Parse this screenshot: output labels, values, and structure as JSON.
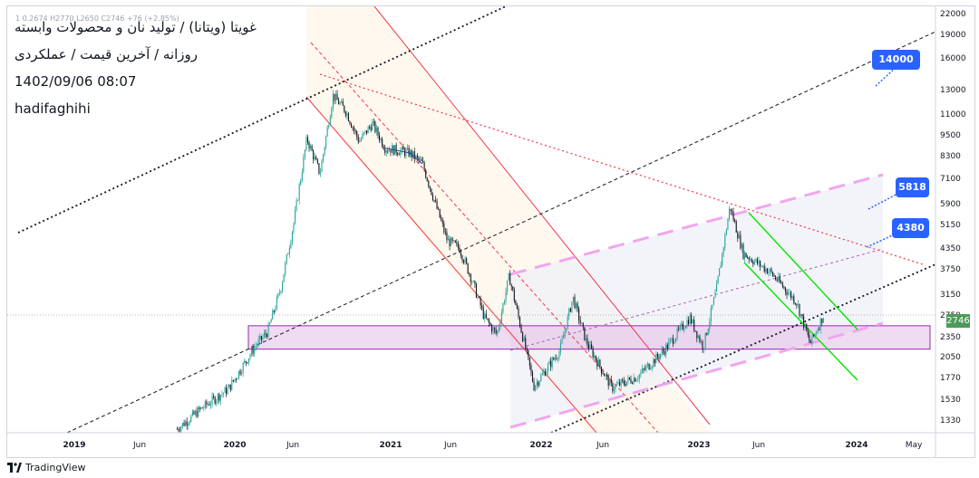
{
  "header": {
    "ohlc": "1 0.2674 H2770 L2650 C2746 +76 (+2.85%)",
    "line1": "غویتا (ویتانا) / تولید نان و محصولات وابسته",
    "line2": "روزانه / آخرین قیمت / عملکردی",
    "line3": "1402/09/06 08:07",
    "line4": "hadifaghihi"
  },
  "callouts": [
    "14000",
    "5818",
    "4380"
  ],
  "last_price": "2746",
  "brand": "TradingView",
  "colors": {
    "up": "#26a69a",
    "line": "#2a3f9e",
    "pink_dashed": "#f0a6ee",
    "red": "#f23645",
    "green": "#00e600",
    "zone": "#e1bee7",
    "callout": "#2962ff",
    "price_tag": "#4c9a59"
  },
  "chart_data": {
    "type": "candlestick",
    "y_scale": "log",
    "ylim": [
      1200,
      22000
    ],
    "y_ticks": [
      "22000",
      "19000",
      "16000",
      "13000",
      "11000",
      "9500",
      "8300",
      "7100",
      "5900",
      "5150",
      "4350",
      "3750",
      "3150",
      "2750",
      "2350",
      "2050",
      "1770",
      "1530",
      "1330"
    ],
    "x_ticks": [
      "2019",
      "Jun",
      "2020",
      "Jun",
      "2021",
      "Jun",
      "2022",
      "Jun",
      "2023",
      "Jun",
      "2024",
      "May"
    ],
    "series": [
      {
        "price_path": [
          [
            "2019-09",
            1250
          ],
          [
            "2019-11",
            1450
          ],
          [
            "2020-01",
            1650
          ],
          [
            "2020-03",
            2200
          ],
          [
            "2020-04",
            2450
          ],
          [
            "2020-05",
            3300
          ],
          [
            "2020-06",
            5200
          ],
          [
            "2020-07",
            9300
          ],
          [
            "2020-08",
            7300
          ],
          [
            "2020-09",
            12500
          ],
          [
            "2020-10",
            11200
          ],
          [
            "2020-11",
            9100
          ],
          [
            "2020-12",
            10300
          ],
          [
            "2021-01",
            8700
          ],
          [
            "2021-03",
            8400
          ],
          [
            "2021-04",
            7800
          ],
          [
            "2021-06",
            4600
          ],
          [
            "2021-07",
            4350
          ],
          [
            "2021-08",
            3500
          ],
          [
            "2021-09",
            2700
          ],
          [
            "2021-10",
            2400
          ],
          [
            "2021-11",
            3600
          ],
          [
            "2022-01",
            1680
          ],
          [
            "2022-03",
            2150
          ],
          [
            "2022-04",
            3100
          ],
          [
            "2022-05",
            2300
          ],
          [
            "2022-07",
            1660
          ],
          [
            "2022-09",
            1800
          ],
          [
            "2022-11",
            2150
          ],
          [
            "2023-01",
            2700
          ],
          [
            "2023-02",
            2200
          ],
          [
            "2023-03",
            3300
          ],
          [
            "2023-04",
            5818
          ],
          [
            "2023-05",
            4200
          ],
          [
            "2023-07",
            3700
          ],
          [
            "2023-09",
            3000
          ],
          [
            "2023-10",
            2250
          ],
          [
            "2023-11",
            2746
          ]
        ]
      }
    ],
    "horizontal_zone": [
      2170,
      2550
    ],
    "targets": [
      14000,
      5818,
      4380
    ],
    "last": 2746
  }
}
